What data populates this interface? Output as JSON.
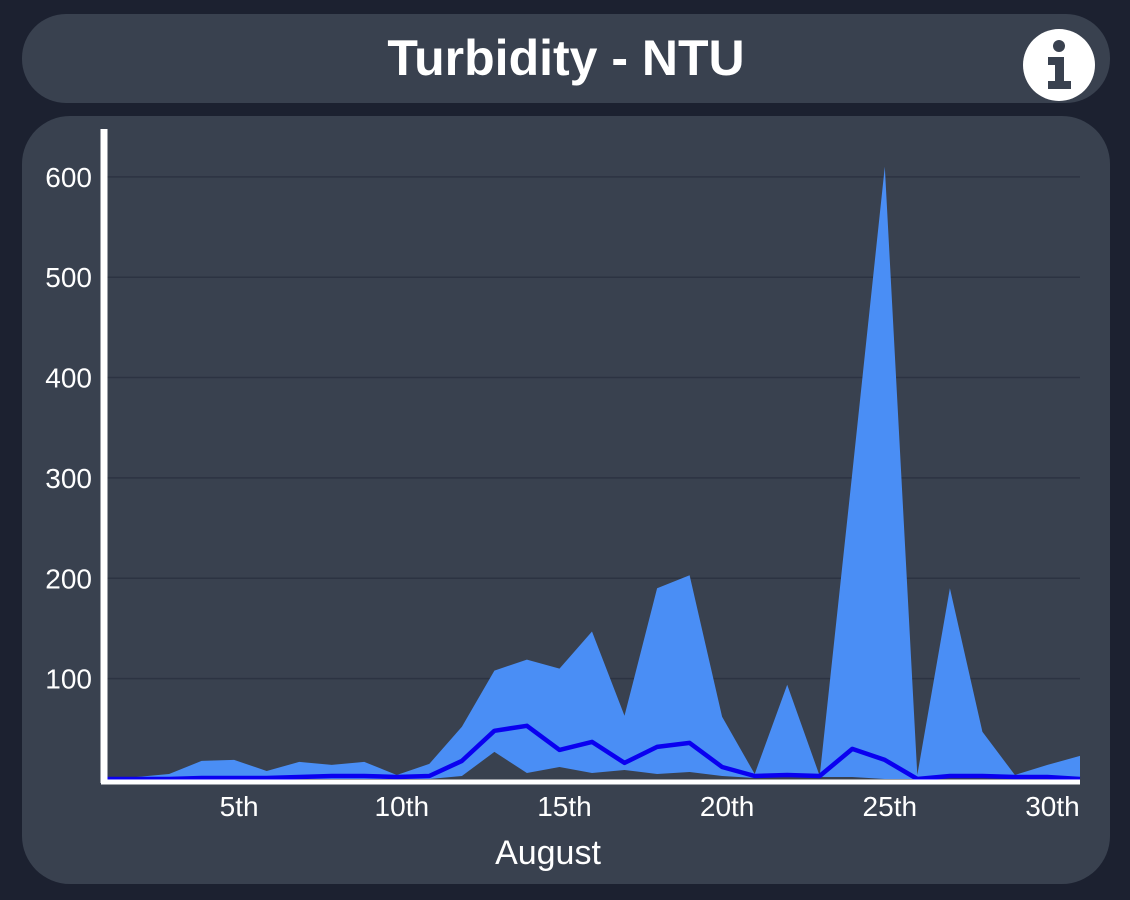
{
  "header": {
    "title": "Turbidity - NTU",
    "info_icon": "info-icon"
  },
  "colors": {
    "background": "#1c2130",
    "panel": "#39414f",
    "band": "#4a8ef5",
    "line": "#0a00f0",
    "axis": "#ffffff",
    "grid": "#2c3342"
  },
  "chart_data": {
    "type": "area",
    "title": "Turbidity - NTU",
    "xlabel": "August",
    "ylabel": "",
    "x": [
      1,
      2,
      3,
      4,
      5,
      6,
      7,
      8,
      9,
      10,
      11,
      12,
      13,
      14,
      15,
      16,
      17,
      18,
      19,
      20,
      21,
      22,
      23,
      24,
      25,
      26,
      27,
      28,
      29,
      30,
      31
    ],
    "x_ticks": [
      {
        "value": 5,
        "label": "5th"
      },
      {
        "value": 10,
        "label": "10th"
      },
      {
        "value": 15,
        "label": "15th"
      },
      {
        "value": 20,
        "label": "20th"
      },
      {
        "value": 25,
        "label": "25th"
      },
      {
        "value": 30,
        "label": "30th"
      }
    ],
    "y_ticks": [
      100,
      200,
      300,
      400,
      500,
      600
    ],
    "xlim": [
      1,
      31
    ],
    "ylim": [
      0,
      650
    ],
    "grid": true,
    "series": [
      {
        "role": "band-max",
        "values": [
          1,
          2,
          5,
          18,
          19,
          8,
          17,
          14,
          17,
          4,
          15,
          52,
          108,
          119,
          110,
          147,
          63,
          190,
          203,
          62,
          5,
          94,
          3,
          305,
          610,
          4,
          190,
          47,
          4,
          14,
          23
        ]
      },
      {
        "role": "band-min",
        "values": [
          0,
          0,
          0,
          0,
          0,
          0,
          0,
          0,
          0,
          0,
          0,
          3,
          27,
          6,
          12,
          6,
          9,
          5,
          7,
          3,
          1,
          3,
          2,
          2,
          0,
          0,
          1,
          1,
          1,
          1,
          1
        ]
      },
      {
        "role": "line",
        "values": [
          0,
          0,
          0,
          1,
          1,
          1,
          2,
          3,
          3,
          2,
          3,
          18,
          48,
          53,
          29,
          37,
          16,
          32,
          36,
          12,
          3,
          4,
          3,
          30,
          19,
          0,
          3,
          3,
          2,
          2,
          0
        ]
      }
    ]
  }
}
